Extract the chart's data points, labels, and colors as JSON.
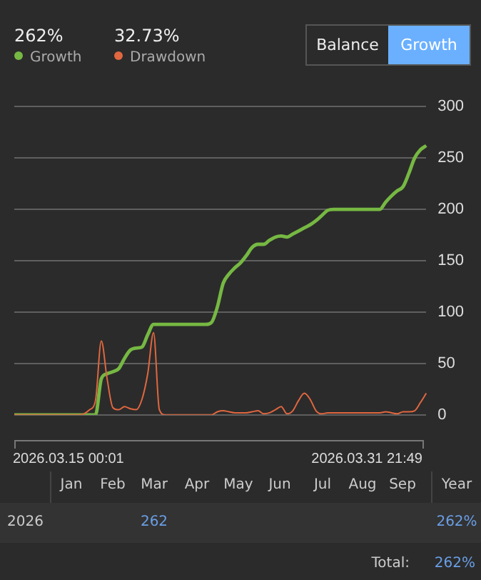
{
  "chart_data": [
    {
      "type": "line",
      "categories": [
        null,
        null,
        null,
        null,
        null,
        null,
        null,
        null,
        null,
        null,
        null,
        null,
        null,
        null,
        null,
        null,
        null,
        null,
        null,
        null,
        null,
        null,
        null,
        null,
        null,
        null,
        null,
        null,
        null,
        null,
        null,
        null,
        null,
        null,
        null,
        null,
        null,
        null,
        null,
        null,
        null,
        null,
        null,
        null,
        null,
        null,
        null,
        null,
        null,
        null,
        null,
        null,
        null,
        null,
        null,
        null,
        null,
        null,
        null,
        null,
        null,
        null,
        null,
        null,
        null,
        null,
        null,
        null,
        null,
        null,
        null,
        null
      ],
      "series": [
        {
          "name": "Growth",
          "color": "#76b843",
          "values": [
            0,
            0,
            0,
            0,
            0,
            0,
            0,
            0,
            0,
            0,
            0,
            0,
            0,
            0,
            0,
            35,
            40,
            42,
            45,
            55,
            63,
            65,
            66,
            78,
            88,
            88,
            88,
            88,
            88,
            88,
            88,
            88,
            88,
            88,
            90,
            105,
            128,
            137,
            143,
            148,
            155,
            163,
            166,
            166,
            170,
            173,
            174,
            173,
            176,
            179,
            182,
            185,
            189,
            194,
            199,
            200,
            200,
            200,
            200,
            200,
            200,
            200,
            200,
            200,
            207,
            213,
            218,
            222,
            235,
            250,
            258,
            262
          ]
        },
        {
          "name": "Drawdown",
          "color": "#e0673f",
          "values": [
            0,
            0,
            0,
            0,
            0,
            0,
            0,
            0,
            0,
            0,
            0,
            0,
            1,
            5,
            14,
            72,
            35,
            7,
            5,
            8,
            6,
            5,
            15,
            40,
            80,
            5,
            0,
            0,
            0,
            0,
            0,
            0,
            0,
            0,
            0,
            3,
            4,
            3,
            2,
            2,
            2,
            3,
            4,
            1,
            2,
            5,
            8,
            1,
            4,
            14,
            21,
            15,
            4,
            1,
            2,
            2,
            2,
            2,
            2,
            2,
            2,
            2,
            2,
            2,
            3,
            2,
            1,
            3,
            3,
            4,
            12,
            21
          ]
        }
      ],
      "ylim": [
        0,
        300
      ],
      "yticks": [
        0,
        50,
        100,
        150,
        200,
        250,
        300
      ],
      "grid": "y",
      "legend": "top left",
      "marker": "none",
      "tick_labels": "y",
      "annotations": [
        "262%",
        "32.73%",
        "Balance",
        "Growth",
        "2026.03.15 00:01",
        "2026.03.31 21:49"
      ]
    },
    {
      "type": "other",
      "categories": [
        "Jan",
        "Feb",
        "Mar",
        "Apr",
        "May",
        "Jun",
        "Jul",
        "Aug",
        "Sep",
        "Year"
      ],
      "y_categories": [
        "2026"
      ],
      "cell_labels": [
        [
          null,
          null,
          "262",
          null,
          null,
          null,
          null,
          null,
          null,
          "262%"
        ]
      ],
      "annotations": [
        "Total:",
        "262%"
      ]
    }
  ]
}
